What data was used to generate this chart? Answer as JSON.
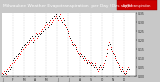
{
  "title": "Milwaukee Weather Evapotranspiration  per Day (Ozs sq/ft)",
  "title_fontsize": 3.2,
  "background_color": "#c8c8c8",
  "plot_bg_color": "#ffffff",
  "header_bg": "#2a2a2a",
  "header_text_color": "#ffffff",
  "legend_label": "Evapotranspiration",
  "legend_bg": "#cc0000",
  "legend_text_color": "#ffffff",
  "grid_color": "#bbbbbb",
  "ylim": [
    0.0,
    0.35
  ],
  "ytick_vals": [
    0.0,
    0.05,
    0.1,
    0.15,
    0.2,
    0.25,
    0.3,
    0.35
  ],
  "ytick_labels": [
    "0.00",
    "0.05",
    "0.10",
    "0.15",
    "0.20",
    "0.25",
    "0.30",
    "0.35"
  ],
  "vline_positions": [
    13,
    27,
    41,
    55,
    69,
    83,
    97,
    111,
    125,
    139,
    153
  ],
  "xtick_positions": [
    0,
    6,
    13,
    19,
    27,
    33,
    41,
    47,
    55,
    61,
    69,
    75,
    83,
    89,
    97,
    103,
    111,
    117,
    125,
    131,
    139,
    145,
    153,
    159,
    167
  ],
  "xtick_labels": [
    "J",
    "",
    "F",
    "",
    "M",
    "",
    "A",
    "",
    "M",
    "",
    "J",
    "",
    "J",
    "",
    "A",
    "",
    "S",
    "",
    "O",
    "",
    "N",
    "",
    "D",
    "",
    ""
  ],
  "x_values": [
    0,
    1,
    2,
    3,
    4,
    5,
    6,
    7,
    8,
    9,
    10,
    11,
    12,
    13,
    14,
    15,
    16,
    17,
    18,
    19,
    20,
    21,
    22,
    23,
    24,
    25,
    26,
    27,
    28,
    29,
    30,
    31,
    32,
    33,
    34,
    35,
    36,
    37,
    38,
    39,
    40,
    41,
    42,
    43,
    44,
    45,
    46,
    47,
    48,
    49,
    50,
    51,
    52,
    53,
    54,
    55,
    56,
    57,
    58,
    59,
    60,
    61,
    62,
    63,
    64,
    65,
    66,
    67,
    68,
    69,
    70,
    71,
    72,
    73,
    74,
    75,
    76,
    77,
    78,
    79,
    80,
    81,
    82,
    83,
    84,
    85,
    86,
    87,
    88,
    89,
    90,
    91,
    92,
    93,
    94,
    95,
    96,
    97,
    98,
    99,
    100,
    101,
    102,
    103,
    104,
    105,
    106,
    107,
    108,
    109,
    110,
    111,
    112,
    113,
    114,
    115,
    116,
    117,
    118,
    119,
    120,
    121,
    122,
    123,
    124,
    125,
    126,
    127,
    128,
    129,
    130,
    131,
    132,
    133,
    134,
    135,
    136,
    137,
    138,
    139,
    140,
    141,
    142,
    143,
    144,
    145,
    146,
    147,
    148,
    149,
    150,
    151,
    152,
    153,
    154,
    155,
    156,
    157,
    158,
    159,
    160,
    161,
    162,
    163,
    164,
    165,
    166,
    167
  ],
  "y_values": [
    0.02,
    0.01,
    0.03,
    0.02,
    0.01,
    0.03,
    0.04,
    0.03,
    0.05,
    0.04,
    0.06,
    0.05,
    0.07,
    0.09,
    0.08,
    0.1,
    0.09,
    0.11,
    0.1,
    0.12,
    0.11,
    0.13,
    0.12,
    0.15,
    0.14,
    0.16,
    0.15,
    0.17,
    0.16,
    0.18,
    0.17,
    0.19,
    0.18,
    0.2,
    0.19,
    0.21,
    0.2,
    0.22,
    0.21,
    0.19,
    0.2,
    0.22,
    0.24,
    0.23,
    0.21,
    0.22,
    0.24,
    0.23,
    0.25,
    0.24,
    0.26,
    0.25,
    0.27,
    0.26,
    0.28,
    0.3,
    0.29,
    0.27,
    0.28,
    0.3,
    0.31,
    0.29,
    0.3,
    0.32,
    0.31,
    0.33,
    0.32,
    0.34,
    0.33,
    0.32,
    0.31,
    0.33,
    0.34,
    0.32,
    0.31,
    0.3,
    0.32,
    0.31,
    0.29,
    0.28,
    0.27,
    0.26,
    0.25,
    0.24,
    0.22,
    0.21,
    0.2,
    0.19,
    0.18,
    0.17,
    0.18,
    0.17,
    0.16,
    0.15,
    0.14,
    0.13,
    0.12,
    0.11,
    0.13,
    0.12,
    0.11,
    0.1,
    0.09,
    0.11,
    0.1,
    0.09,
    0.08,
    0.07,
    0.09,
    0.08,
    0.07,
    0.06,
    0.08,
    0.07,
    0.06,
    0.05,
    0.07,
    0.06,
    0.05,
    0.04,
    0.03,
    0.05,
    0.04,
    0.06,
    0.05,
    0.04,
    0.06,
    0.05,
    0.07,
    0.09,
    0.11,
    0.13,
    0.15,
    0.17,
    0.19,
    0.18,
    0.16,
    0.15,
    0.14,
    0.13,
    0.12,
    0.11,
    0.1,
    0.09,
    0.08,
    0.07,
    0.06,
    0.05,
    0.04,
    0.03,
    0.05,
    0.04,
    0.03,
    0.02,
    0.01,
    0.02,
    0.03,
    0.04,
    0.05,
    0.04,
    0.03,
    0.05,
    0.04,
    0.06,
    0.05,
    0.07,
    0.06
  ],
  "dot_colors": [
    "#ff0000",
    "#000000",
    "#ff0000",
    "#000000",
    "#ff0000",
    "#000000",
    "#ff0000",
    "#000000",
    "#ff0000",
    "#000000",
    "#ff0000",
    "#000000",
    "#ff0000",
    "#000000",
    "#ff0000",
    "#000000",
    "#ff0000",
    "#000000",
    "#ff0000",
    "#000000",
    "#ff0000",
    "#000000",
    "#ff0000",
    "#000000",
    "#ff0000",
    "#000000",
    "#ff0000",
    "#000000",
    "#ff0000",
    "#000000",
    "#ff0000",
    "#000000",
    "#ff0000",
    "#000000",
    "#ff0000",
    "#000000",
    "#ff0000",
    "#000000",
    "#ff0000",
    "#000000",
    "#ff0000",
    "#000000",
    "#ff0000",
    "#000000",
    "#ff0000",
    "#000000",
    "#ff0000",
    "#000000",
    "#ff0000",
    "#000000",
    "#ff0000",
    "#000000",
    "#ff0000",
    "#000000",
    "#ff0000",
    "#000000",
    "#ff0000",
    "#000000",
    "#ff0000",
    "#000000",
    "#ff0000",
    "#000000",
    "#ff0000",
    "#000000",
    "#ff0000",
    "#000000",
    "#ff0000",
    "#000000",
    "#ff0000",
    "#000000",
    "#ff0000",
    "#000000",
    "#ff0000",
    "#000000",
    "#ff0000",
    "#000000",
    "#ff0000",
    "#000000",
    "#ff0000",
    "#000000",
    "#ff0000",
    "#000000",
    "#ff0000",
    "#000000",
    "#ff0000",
    "#000000",
    "#ff0000",
    "#000000",
    "#ff0000",
    "#000000",
    "#ff0000",
    "#000000",
    "#ff0000",
    "#000000",
    "#ff0000",
    "#000000",
    "#ff0000",
    "#000000",
    "#ff0000",
    "#000000",
    "#ff0000",
    "#000000",
    "#ff0000",
    "#000000",
    "#ff0000",
    "#000000",
    "#ff0000",
    "#000000",
    "#ff0000",
    "#000000",
    "#ff0000",
    "#000000",
    "#ff0000",
    "#000000",
    "#ff0000",
    "#000000",
    "#ff0000",
    "#000000",
    "#ff0000",
    "#000000",
    "#ff0000",
    "#000000",
    "#ff0000",
    "#000000",
    "#ff0000",
    "#000000",
    "#ff0000",
    "#000000",
    "#ff0000",
    "#000000",
    "#ff0000",
    "#000000",
    "#ff0000",
    "#000000",
    "#ff0000",
    "#000000",
    "#ff0000",
    "#000000",
    "#ff0000",
    "#000000",
    "#ff0000",
    "#000000",
    "#ff0000",
    "#000000",
    "#ff0000",
    "#000000",
    "#ff0000",
    "#000000",
    "#ff0000",
    "#000000",
    "#ff0000",
    "#000000",
    "#ff0000",
    "#000000",
    "#ff0000",
    "#000000",
    "#ff0000",
    "#000000",
    "#ff0000",
    "#000000"
  ]
}
